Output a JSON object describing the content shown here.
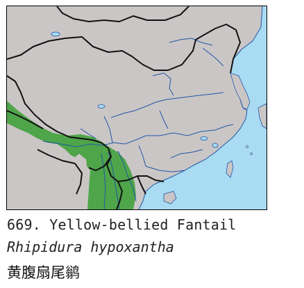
{
  "species": {
    "number": "669.",
    "common_name": "Yellow-bellied Fantail",
    "scientific_name": "Rhipidura hypoxantha",
    "chinese_name": "黄腹扇尾鹟"
  },
  "colors": {
    "sea": "#a9dbf2",
    "land": "#cbc6c6",
    "range": "#4fa54a",
    "river": "#1f56a8",
    "border": "#111111"
  }
}
